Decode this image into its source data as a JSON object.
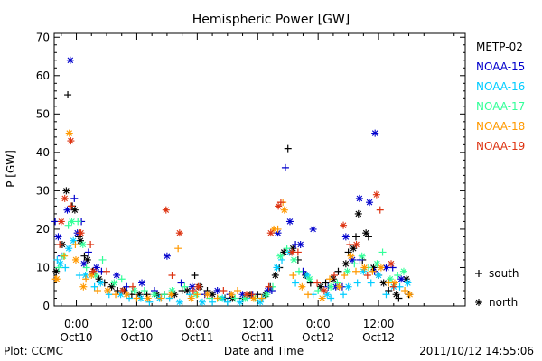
{
  "chart_data": {
    "type": "scatter",
    "title": "Hemispheric Power [GW]",
    "xlabel": "Date and Time",
    "ylabel": "P [GW]",
    "x_unit": "hours since 2011-10-10 00:00 UT",
    "xlim": [
      -4.4,
      77.2
    ],
    "ylim": [
      0,
      71
    ],
    "grid": false,
    "legend_position": "right",
    "y_ticks": [
      "0",
      "10",
      "20",
      "30",
      "40",
      "50",
      "60",
      "70"
    ],
    "x_ticks": [
      {
        "x": 0,
        "line1": "0:00",
        "line2": "Oct10"
      },
      {
        "x": 12,
        "line1": "12:00",
        "line2": "Oct10"
      },
      {
        "x": 24,
        "line1": "0:00",
        "line2": "Oct11"
      },
      {
        "x": 36,
        "line1": "12:00",
        "line2": "Oct11"
      },
      {
        "x": 48,
        "line1": "0:00",
        "line2": "Oct12"
      },
      {
        "x": 60,
        "line1": "12:00",
        "line2": "Oct12"
      }
    ],
    "marker_legend": [
      {
        "symbol": "+",
        "label": "south"
      },
      {
        "symbol": "*",
        "label": "north"
      }
    ],
    "series": [
      {
        "name": "METP-02",
        "color": "#000000",
        "south": [
          [
            -1.7,
            55
          ],
          [
            -0.8,
            26
          ],
          [
            0.5,
            18
          ],
          [
            1.6,
            13
          ],
          [
            3.2,
            9
          ],
          [
            5.6,
            6
          ],
          [
            8.2,
            4
          ],
          [
            11.0,
            3
          ],
          [
            14.0,
            3
          ],
          [
            17.5,
            3
          ],
          [
            21.0,
            4
          ],
          [
            23.5,
            8
          ],
          [
            26.0,
            4
          ],
          [
            29.5,
            2
          ],
          [
            33.0,
            2
          ],
          [
            36.0,
            3
          ],
          [
            38.5,
            5
          ],
          [
            40.3,
            10
          ],
          [
            42.0,
            41
          ],
          [
            44.0,
            12
          ],
          [
            46.5,
            6
          ],
          [
            49.5,
            6
          ],
          [
            52.0,
            9
          ],
          [
            54.0,
            14
          ],
          [
            55.5,
            18
          ],
          [
            56.8,
            12
          ],
          [
            58.0,
            18
          ],
          [
            60.0,
            8
          ],
          [
            62.0,
            4
          ],
          [
            64.0,
            2
          ],
          [
            66.0,
            3
          ]
        ],
        "north": [
          [
            -4.0,
            9
          ],
          [
            -2.8,
            16
          ],
          [
            -2.0,
            30
          ],
          [
            -0.3,
            25
          ],
          [
            0.8,
            17
          ],
          [
            2.2,
            12
          ],
          [
            4.5,
            7
          ],
          [
            7.0,
            5
          ],
          [
            9.5,
            4
          ],
          [
            12.5,
            3
          ],
          [
            16.0,
            3
          ],
          [
            19.5,
            3
          ],
          [
            22.0,
            4
          ],
          [
            24.5,
            5
          ],
          [
            27.0,
            3
          ],
          [
            31.0,
            2
          ],
          [
            34.5,
            3
          ],
          [
            37.5,
            3
          ],
          [
            39.5,
            8
          ],
          [
            41.2,
            14
          ],
          [
            43.0,
            15
          ],
          [
            45.5,
            8
          ],
          [
            48.5,
            5
          ],
          [
            51.0,
            7
          ],
          [
            53.5,
            11
          ],
          [
            55.0,
            15
          ],
          [
            56.0,
            24
          ],
          [
            57.5,
            19
          ],
          [
            59.0,
            10
          ],
          [
            61.0,
            6
          ],
          [
            63.5,
            3
          ],
          [
            65.5,
            7
          ]
        ]
      },
      {
        "name": "NOAA-15",
        "color": "#0000cc",
        "south": [
          [
            -4.2,
            22
          ],
          [
            -3.0,
            13
          ],
          [
            -0.4,
            28
          ],
          [
            1.0,
            22
          ],
          [
            2.4,
            14
          ],
          [
            5.0,
            9
          ],
          [
            10.0,
            5
          ],
          [
            15.5,
            4
          ],
          [
            20.8,
            6
          ],
          [
            25.5,
            3
          ],
          [
            30.5,
            3
          ],
          [
            35.0,
            3
          ],
          [
            38.8,
            4
          ],
          [
            41.5,
            36
          ],
          [
            43.5,
            16
          ],
          [
            45.0,
            9
          ],
          [
            50.0,
            5
          ],
          [
            52.8,
            5
          ],
          [
            56.3,
            12
          ],
          [
            59.2,
            9
          ],
          [
            62.8,
            10
          ]
        ],
        "north": [
          [
            -3.6,
            18
          ],
          [
            -1.8,
            25
          ],
          [
            -1.2,
            64
          ],
          [
            0.2,
            19
          ],
          [
            1.5,
            11
          ],
          [
            4.0,
            10
          ],
          [
            8.0,
            8
          ],
          [
            13.0,
            6
          ],
          [
            18.0,
            13
          ],
          [
            23.0,
            5
          ],
          [
            28.0,
            4
          ],
          [
            33.0,
            3
          ],
          [
            38.0,
            4
          ],
          [
            40.0,
            19
          ],
          [
            42.4,
            22
          ],
          [
            44.5,
            16
          ],
          [
            47.0,
            20
          ],
          [
            51.5,
            5
          ],
          [
            53.5,
            18
          ],
          [
            54.8,
            12
          ],
          [
            56.2,
            28
          ],
          [
            58.2,
            27
          ],
          [
            59.3,
            45
          ],
          [
            61.5,
            10
          ],
          [
            64.5,
            7
          ]
        ]
      },
      {
        "name": "NOAA-16",
        "color": "#00ccff",
        "south": [
          [
            -3.8,
            12
          ],
          [
            -2.2,
            10
          ],
          [
            0.6,
            8
          ],
          [
            3.6,
            5
          ],
          [
            6.5,
            3
          ],
          [
            10.5,
            2
          ],
          [
            14.5,
            1
          ],
          [
            18.5,
            2
          ],
          [
            22.5,
            3
          ],
          [
            27.0,
            1
          ],
          [
            30.0,
            1
          ],
          [
            34.0,
            2
          ],
          [
            37.0,
            2
          ],
          [
            40.8,
            12
          ],
          [
            43.5,
            6
          ],
          [
            47.0,
            3
          ],
          [
            50.5,
            2
          ],
          [
            53.0,
            3
          ],
          [
            55.8,
            6
          ],
          [
            58.5,
            6
          ],
          [
            61.5,
            3
          ],
          [
            64.2,
            5
          ]
        ],
        "north": [
          [
            -3.2,
            11
          ],
          [
            -1.5,
            15
          ],
          [
            -0.6,
            17
          ],
          [
            1.8,
            8
          ],
          [
            4.8,
            6
          ],
          [
            8.8,
            3
          ],
          [
            12.8,
            2
          ],
          [
            16.5,
            2
          ],
          [
            20.5,
            1
          ],
          [
            25.0,
            1
          ],
          [
            29.0,
            2
          ],
          [
            32.5,
            1
          ],
          [
            36.5,
            1
          ],
          [
            39.8,
            10
          ],
          [
            42.3,
            14
          ],
          [
            45.8,
            8
          ],
          [
            49.8,
            3
          ],
          [
            54.0,
            5
          ],
          [
            57.0,
            9
          ],
          [
            60.0,
            8
          ],
          [
            63.0,
            5
          ],
          [
            65.8,
            6
          ]
        ]
      },
      {
        "name": "NOAA-17",
        "color": "#33ff99",
        "south": [
          [
            -3.5,
            10
          ],
          [
            -1.6,
            21
          ],
          [
            0.3,
            22
          ],
          [
            2.0,
            10
          ],
          [
            5.2,
            12
          ],
          [
            9.0,
            7
          ],
          [
            13.5,
            4
          ],
          [
            17.5,
            3
          ],
          [
            21.5,
            5
          ],
          [
            26.5,
            2
          ],
          [
            31.5,
            2
          ],
          [
            35.5,
            2
          ],
          [
            39.0,
            5
          ],
          [
            41.8,
            15
          ],
          [
            44.2,
            9
          ],
          [
            48.0,
            4
          ],
          [
            51.8,
            6
          ],
          [
            55.2,
            11
          ],
          [
            58.0,
            10
          ],
          [
            60.8,
            14
          ],
          [
            63.8,
            8
          ]
        ],
        "north": [
          [
            -2.6,
            13
          ],
          [
            -0.9,
            22
          ],
          [
            1.3,
            16
          ],
          [
            3.8,
            8
          ],
          [
            7.5,
            6
          ],
          [
            11.5,
            4
          ],
          [
            15.5,
            3
          ],
          [
            19.0,
            4
          ],
          [
            23.8,
            3
          ],
          [
            28.5,
            2
          ],
          [
            33.5,
            2
          ],
          [
            37.8,
            3
          ],
          [
            40.5,
            13
          ],
          [
            43.2,
            12
          ],
          [
            46.3,
            7
          ],
          [
            50.5,
            5
          ],
          [
            53.8,
            9
          ],
          [
            56.7,
            13
          ],
          [
            59.7,
            11
          ],
          [
            62.3,
            7
          ],
          [
            65.0,
            9
          ]
        ]
      },
      {
        "name": "NOAA-18",
        "color": "#ff9900",
        "south": [
          [
            -4.1,
            7
          ],
          [
            -2.4,
            13
          ],
          [
            -0.2,
            16
          ],
          [
            1.9,
            7
          ],
          [
            4.2,
            4
          ],
          [
            7.8,
            3
          ],
          [
            12.0,
            2
          ],
          [
            16.8,
            2
          ],
          [
            20.2,
            15
          ],
          [
            24.0,
            3
          ],
          [
            28.0,
            2
          ],
          [
            32.0,
            4
          ],
          [
            36.8,
            2
          ],
          [
            40.0,
            20
          ],
          [
            41.0,
            27
          ],
          [
            43.0,
            8
          ],
          [
            46.0,
            3
          ],
          [
            50.3,
            7
          ],
          [
            53.2,
            8
          ],
          [
            55.5,
            9
          ],
          [
            58.8,
            9
          ],
          [
            62.0,
            6
          ],
          [
            65.2,
            4
          ]
        ],
        "north": [
          [
            -3.9,
            7
          ],
          [
            -1.4,
            45
          ],
          [
            -0.1,
            12
          ],
          [
            1.4,
            5
          ],
          [
            3.0,
            8
          ],
          [
            6.2,
            4
          ],
          [
            10.0,
            3
          ],
          [
            14.2,
            2
          ],
          [
            18.8,
            3
          ],
          [
            22.8,
            2
          ],
          [
            26.0,
            3
          ],
          [
            30.8,
            3
          ],
          [
            35.2,
            2
          ],
          [
            39.2,
            20
          ],
          [
            41.3,
            25
          ],
          [
            44.8,
            5
          ],
          [
            48.8,
            2
          ],
          [
            52.2,
            5
          ],
          [
            54.5,
            13
          ],
          [
            57.2,
            10
          ],
          [
            60.5,
            10
          ],
          [
            63.2,
            6
          ],
          [
            66.2,
            3
          ]
        ]
      },
      {
        "name": "NOAA-19",
        "color": "#dd3311",
        "south": [
          [
            -3.3,
            16
          ],
          [
            -1.0,
            26
          ],
          [
            0.7,
            19
          ],
          [
            2.8,
            16
          ],
          [
            6.0,
            9
          ],
          [
            11.2,
            5
          ],
          [
            19.0,
            8
          ],
          [
            23.2,
            4
          ],
          [
            29.2,
            4
          ],
          [
            34.8,
            3
          ],
          [
            38.2,
            5
          ],
          [
            40.6,
            27
          ],
          [
            44.0,
            14
          ],
          [
            47.8,
            6
          ],
          [
            51.2,
            8
          ],
          [
            54.3,
            16
          ],
          [
            57.8,
            8
          ],
          [
            60.3,
            25
          ],
          [
            63.0,
            5
          ]
        ],
        "north": [
          [
            -3.0,
            22
          ],
          [
            -2.3,
            28
          ],
          [
            -1.1,
            43
          ],
          [
            0.9,
            19
          ],
          [
            3.4,
            9
          ],
          [
            9.2,
            4
          ],
          [
            17.8,
            25
          ],
          [
            20.5,
            19
          ],
          [
            24.2,
            5
          ],
          [
            33.8,
            3
          ],
          [
            38.6,
            19
          ],
          [
            40.1,
            26
          ],
          [
            42.8,
            14
          ],
          [
            49.2,
            4
          ],
          [
            53.0,
            21
          ],
          [
            55.6,
            16
          ],
          [
            59.6,
            29
          ],
          [
            62.5,
            11
          ]
        ]
      }
    ]
  },
  "footer": {
    "plot_credit": "Plot: CCMC",
    "timestamp": "2011/10/12 14:55:06"
  }
}
